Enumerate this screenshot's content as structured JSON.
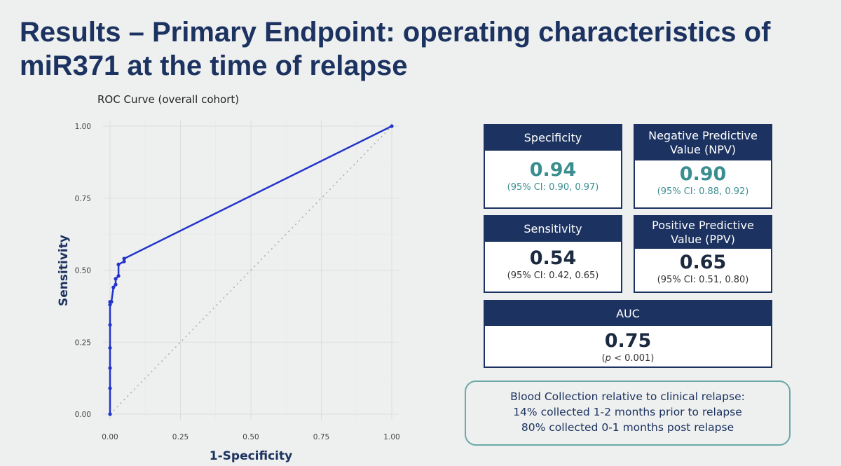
{
  "slide": {
    "title": "Results – Primary Endpoint: operating characteristics of miR371 at the time of relapse"
  },
  "chart_data": {
    "type": "line",
    "title": "ROC Curve (overall cohort)",
    "xlabel": "1-Specificity",
    "ylabel": "Sensitivity",
    "xlim": [
      0,
      1
    ],
    "ylim": [
      0,
      1
    ],
    "x_ticks": [
      "0.00",
      "0.25",
      "0.50",
      "0.75",
      "1.00"
    ],
    "y_ticks": [
      "0.00",
      "0.25",
      "0.50",
      "0.75",
      "1.00"
    ],
    "grid": true,
    "reference_line": "diagonal dotted",
    "series": [
      {
        "color": "#2233cc",
        "x": [
          0.0,
          0.0,
          0.0,
          0.0,
          0.0,
          0.0,
          0.0,
          0.005,
          0.012,
          0.02,
          0.02,
          0.03,
          0.03,
          0.05,
          0.05,
          1.0
        ],
        "y": [
          0.0,
          0.09,
          0.16,
          0.23,
          0.31,
          0.38,
          0.39,
          0.39,
          0.44,
          0.45,
          0.47,
          0.48,
          0.52,
          0.53,
          0.54,
          1.0
        ]
      }
    ]
  },
  "metrics": {
    "specificity": {
      "label": "Specificity",
      "value": "0.94",
      "ci": "(95% CI: 0.90, 0.97)"
    },
    "npv": {
      "label_line1": "Negative Predictive",
      "label_line2": "Value (NPV)",
      "value": "0.90",
      "ci": "(95% CI: 0.88, 0.92)"
    },
    "sensitivity": {
      "label": "Sensitivity",
      "value": "0.54",
      "ci": "(95% CI: 0.42, 0.65)"
    },
    "ppv": {
      "label_line1": "Positive Predictive",
      "label_line2": "Value (PPV)",
      "value": "0.65",
      "ci": "(95% CI: 0.51, 0.80)"
    },
    "auc": {
      "label": "AUC",
      "value": "0.75",
      "p_symbol": "p",
      "p_rest": " < 0.001)"
    }
  },
  "note": {
    "line1": "Blood Collection relative to clinical relapse:",
    "line2": "14% collected 1-2 months prior to relapse",
    "line3": "80% collected 0-1 months post relapse"
  },
  "colors": {
    "navy": "#1c3260",
    "teal": "#3a8e90",
    "roc_line": "#2233cc",
    "note_border": "#6aa9a8"
  }
}
